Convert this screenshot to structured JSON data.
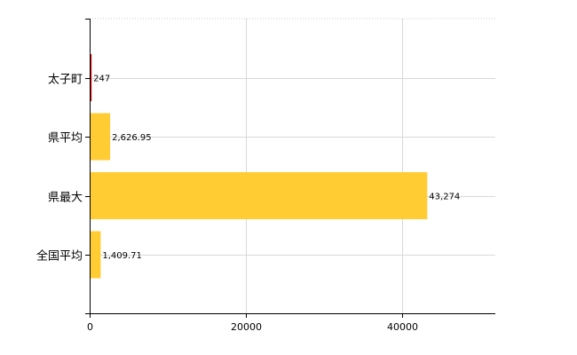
{
  "chart_data": {
    "type": "bar",
    "orientation": "horizontal",
    "categories": [
      "太子町",
      "県平均",
      "県最大",
      "全国平均"
    ],
    "values": [
      247,
      2626.95,
      43274,
      1409.71
    ],
    "value_labels": [
      "247",
      "2,626.95",
      "43,274",
      "1,409.71"
    ],
    "x_ticks": [
      0,
      20000,
      40000
    ],
    "x_tick_labels": [
      "0",
      "20000",
      "40000"
    ],
    "xlim": [
      0,
      52000
    ],
    "grid": true,
    "bar_colors": [
      "#cc0000",
      "#ffcc33",
      "#ffcc33",
      "#ffcc33"
    ],
    "title": "",
    "xlabel": "",
    "ylabel": ""
  }
}
